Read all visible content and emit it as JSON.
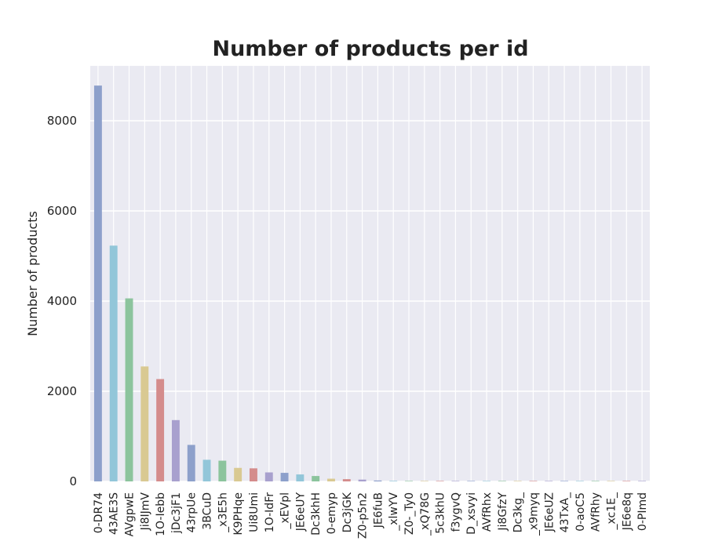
{
  "chart_data": {
    "type": "bar",
    "title": "Number of products per id",
    "xlabel": "",
    "ylabel": "Number of products",
    "ylim": [
      0,
      9200
    ],
    "yticks": [
      0,
      2000,
      4000,
      6000,
      8000
    ],
    "grid": true,
    "categories": [
      "0-DR74",
      "43AE3S",
      "AVgpwE",
      "Ji8IJmV",
      "1O-Iebb",
      "jDc3jF1",
      "43rpUe",
      "3BCuD",
      "_x3E5h",
      "K9PHqe",
      "Ui8Umi",
      "1O-IdFr",
      "_xEVpl",
      "JE6eUY",
      "Dc3khH",
      "0-emyp",
      "Dc3jGK",
      "Z0-p5n2",
      "JE6fuB",
      "_xlwYV",
      "Z0-_Ty0",
      "_xQ78G",
      "5c3khU",
      "f3ygvQ",
      "D_xsvyi",
      "AVfRhx",
      "Ji8GfzY",
      "Dc3kg_",
      "_x9myq",
      "JE6eUZ",
      "43TxA_",
      "0-aoC5",
      "AVfRhy",
      "_xc1E_",
      "JE6e8q",
      "0-PImd"
    ],
    "values": [
      8780,
      5230,
      4060,
      2550,
      2270,
      1360,
      810,
      480,
      460,
      300,
      290,
      200,
      190,
      155,
      120,
      60,
      50,
      40,
      20,
      12,
      10,
      8,
      6,
      5,
      4,
      3,
      3,
      2,
      2,
      2,
      1,
      1,
      1,
      1,
      1,
      1
    ],
    "colors": [
      "#8da0cb",
      "#92c6d9",
      "#8cc49d",
      "#d9c992",
      "#d48c8c",
      "#a8a0ce"
    ],
    "background": "#eaeaf2",
    "grid_color": "#ffffff"
  }
}
